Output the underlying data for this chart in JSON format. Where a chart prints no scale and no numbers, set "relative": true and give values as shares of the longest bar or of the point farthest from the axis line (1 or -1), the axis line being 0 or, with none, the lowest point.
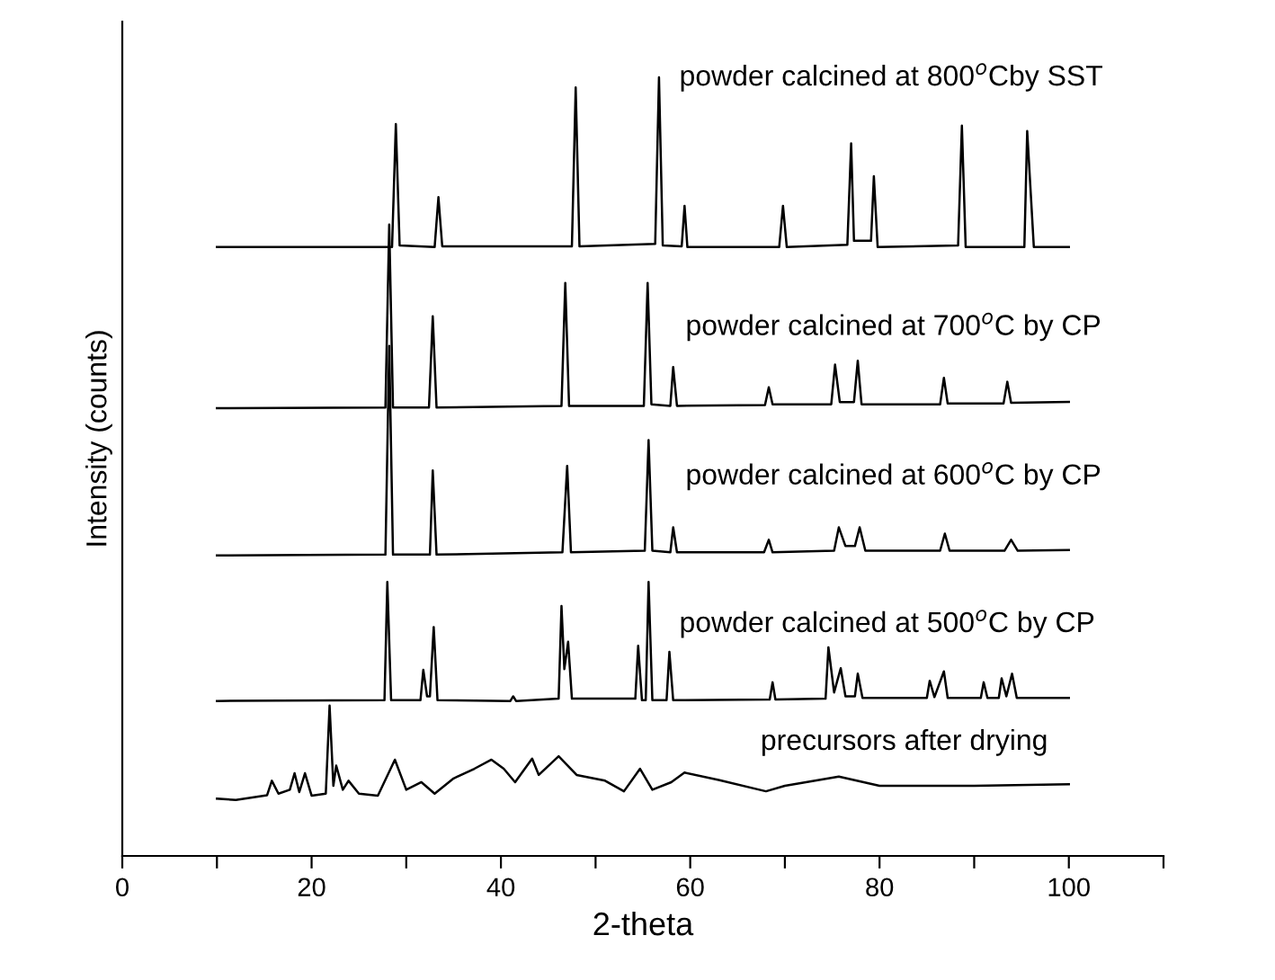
{
  "chart_data": {
    "type": "line",
    "relative": true,
    "xlabel": "2-theta",
    "ylabel": "Intensity (counts)",
    "xlim": [
      0,
      110
    ],
    "xticks": [
      0,
      {
        "value": 10,
        "label": null
      },
      20,
      {
        "value": 30,
        "label": null
      },
      40,
      {
        "value": 50,
        "label": null
      },
      60,
      {
        "value": 70,
        "label": null
      },
      80,
      {
        "value": 90,
        "label": null
      },
      100,
      {
        "value": 110,
        "label": null
      }
    ],
    "grid": false,
    "legend": false,
    "marker": "none",
    "line_style": "solid",
    "series": [
      {
        "name": "powder calcined at 800$^{o}$Cby SST",
        "color": "#000000",
        "x": [
          10,
          28.5,
          28.9,
          29.3,
          33.0,
          33.4,
          33.8,
          47.5,
          47.9,
          48.3,
          56.3,
          56.7,
          57.1,
          59.1,
          59.4,
          59.7,
          69.4,
          69.8,
          70.2,
          76.6,
          77.0,
          77.3,
          79.1,
          79.4,
          79.8,
          88.3,
          88.7,
          89.1,
          95.3,
          95.6,
          95.9,
          96.3,
          100
        ],
        "values": [
          0.782,
          0.782,
          0.94,
          0.784,
          0.782,
          0.846,
          0.783,
          0.783,
          0.987,
          0.783,
          0.786,
          1.0,
          0.784,
          0.783,
          0.835,
          0.782,
          0.782,
          0.835,
          0.782,
          0.785,
          0.915,
          0.79,
          0.79,
          0.873,
          0.782,
          0.784,
          0.938,
          0.782,
          0.782,
          0.931,
          0.867,
          0.782,
          0.782
        ]
      },
      {
        "name": "powder calcined at 700$^{o}$C by CP",
        "color": "#000000",
        "x": [
          10,
          27.8,
          28.2,
          28.6,
          32.4,
          32.8,
          33.2,
          46.4,
          46.8,
          47.2,
          55.1,
          55.5,
          55.9,
          57.9,
          58.2,
          58.6,
          67.9,
          68.3,
          68.7,
          74.9,
          75.3,
          75.8,
          77.3,
          77.7,
          78.1,
          86.4,
          86.8,
          87.2,
          93.1,
          93.5,
          93.9,
          100
        ],
        "values": [
          0.575,
          0.576,
          0.811,
          0.576,
          0.576,
          0.693,
          0.576,
          0.578,
          0.736,
          0.578,
          0.578,
          0.736,
          0.58,
          0.578,
          0.628,
          0.578,
          0.579,
          0.602,
          0.58,
          0.58,
          0.631,
          0.583,
          0.583,
          0.636,
          0.58,
          0.58,
          0.614,
          0.581,
          0.581,
          0.609,
          0.582,
          0.583
        ]
      },
      {
        "name": "powder calcined at 600$^{o}$C by CP",
        "color": "#000000",
        "x": [
          10,
          27.8,
          28.2,
          28.6,
          32.5,
          32.8,
          33.2,
          46.5,
          47.0,
          47.4,
          55.2,
          55.6,
          56.0,
          57.9,
          58.2,
          58.6,
          67.8,
          68.3,
          68.7,
          75.2,
          75.7,
          76.4,
          77.4,
          77.9,
          78.5,
          86.4,
          86.9,
          87.4,
          93.2,
          93.9,
          94.6,
          100
        ],
        "values": [
          0.386,
          0.387,
          0.655,
          0.387,
          0.387,
          0.495,
          0.387,
          0.39,
          0.501,
          0.39,
          0.392,
          0.534,
          0.392,
          0.39,
          0.422,
          0.39,
          0.39,
          0.406,
          0.39,
          0.392,
          0.422,
          0.398,
          0.398,
          0.422,
          0.392,
          0.392,
          0.414,
          0.392,
          0.392,
          0.406,
          0.392,
          0.393
        ]
      },
      {
        "name": "powder calcined at 500$^{o}$C by CP",
        "color": "#000000",
        "x": [
          10,
          27.7,
          28.0,
          28.4,
          31.5,
          31.8,
          32.2,
          32.5,
          32.9,
          33.3,
          41.0,
          41.3,
          41.6,
          46.1,
          46.4,
          46.7,
          47.1,
          47.5,
          54.2,
          54.5,
          54.9,
          55.3,
          55.6,
          56.0,
          57.5,
          57.8,
          58.2,
          68.4,
          68.7,
          69.0,
          74.3,
          74.6,
          75.2,
          75.9,
          76.4,
          77.4,
          77.7,
          78.2,
          85.0,
          85.3,
          85.8,
          86.8,
          87.2,
          90.7,
          91.0,
          91.4,
          92.6,
          92.9,
          93.4,
          94.0,
          94.5,
          100
        ],
        "values": [
          0.199,
          0.2,
          0.352,
          0.2,
          0.2,
          0.239,
          0.205,
          0.205,
          0.294,
          0.2,
          0.199,
          0.205,
          0.199,
          0.202,
          0.321,
          0.24,
          0.275,
          0.202,
          0.202,
          0.27,
          0.2,
          0.2,
          0.352,
          0.2,
          0.2,
          0.262,
          0.2,
          0.201,
          0.223,
          0.201,
          0.202,
          0.268,
          0.21,
          0.241,
          0.205,
          0.205,
          0.234,
          0.203,
          0.203,
          0.225,
          0.204,
          0.237,
          0.203,
          0.203,
          0.223,
          0.203,
          0.203,
          0.228,
          0.205,
          0.234,
          0.203,
          0.203
        ]
      },
      {
        "name": "precursors after drying",
        "color": "#000000",
        "x": [
          10,
          12,
          15.3,
          15.8,
          16.5,
          17.7,
          18.2,
          18.7,
          19.3,
          20,
          21.5,
          21.9,
          22.3,
          22.6,
          23.3,
          23.9,
          25,
          27,
          28.8,
          30,
          31.6,
          33,
          35,
          37.2,
          39,
          40.3,
          41.5,
          43.3,
          44,
          46.1,
          48,
          51,
          53,
          54.7,
          56,
          58,
          59.4,
          63,
          68,
          70,
          75.7,
          80,
          90,
          100
        ],
        "values": [
          0.0735,
          0.072,
          0.078,
          0.0966,
          0.08,
          0.085,
          0.1062,
          0.082,
          0.1062,
          0.0774,
          0.08,
          0.193,
          0.09,
          0.116,
          0.085,
          0.0966,
          0.08,
          0.0774,
          0.1236,
          0.085,
          0.0947,
          0.08,
          0.0995,
          0.112,
          0.1236,
          0.112,
          0.0947,
          0.125,
          0.104,
          0.128,
          0.104,
          0.0966,
          0.083,
          0.112,
          0.085,
          0.0947,
          0.107,
          0.0976,
          0.083,
          0.09,
          0.102,
          0.09,
          0.09,
          0.092
        ]
      }
    ]
  }
}
